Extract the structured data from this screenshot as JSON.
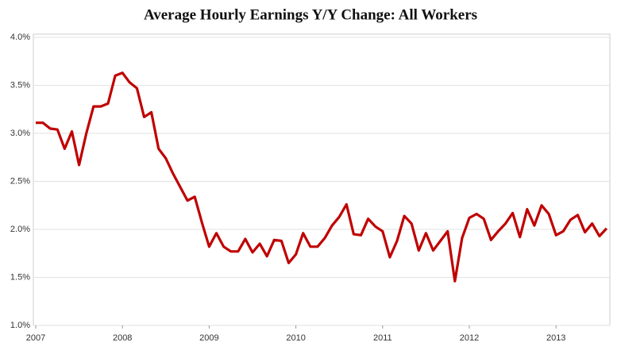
{
  "chart_data": {
    "type": "line",
    "title": "Average Hourly Earnings Y/Y Change: All Workers",
    "categories": [
      "2007",
      null,
      null,
      null,
      null,
      null,
      null,
      null,
      null,
      null,
      null,
      null,
      "2008",
      null,
      null,
      null,
      null,
      null,
      null,
      null,
      null,
      null,
      null,
      null,
      "2009",
      null,
      null,
      null,
      null,
      null,
      null,
      null,
      null,
      null,
      null,
      null,
      "2010",
      null,
      null,
      null,
      null,
      null,
      null,
      null,
      null,
      null,
      null,
      null,
      "2011",
      null,
      null,
      null,
      null,
      null,
      null,
      null,
      null,
      null,
      null,
      null,
      "2012",
      null,
      null,
      null,
      null,
      null,
      null,
      null,
      null,
      null,
      null,
      null,
      "2013",
      null,
      null,
      null,
      null,
      null,
      null,
      null
    ],
    "values": [
      3.11,
      3.11,
      3.05,
      3.04,
      2.84,
      3.02,
      2.67,
      3.0,
      3.28,
      3.28,
      3.31,
      3.6,
      3.63,
      3.53,
      3.47,
      3.17,
      3.22,
      2.84,
      2.74,
      2.58,
      2.44,
      2.3,
      2.34,
      2.07,
      1.82,
      1.96,
      1.82,
      1.77,
      1.77,
      1.9,
      1.76,
      1.85,
      1.72,
      1.89,
      1.88,
      1.65,
      1.74,
      1.96,
      1.82,
      1.82,
      1.91,
      2.04,
      2.13,
      2.26,
      1.95,
      1.94,
      2.11,
      2.03,
      1.98,
      1.71,
      1.88,
      2.14,
      2.06,
      1.78,
      1.96,
      1.78,
      1.88,
      1.98,
      1.46,
      1.91,
      2.12,
      2.16,
      2.11,
      1.89,
      1.98,
      2.06,
      2.17,
      1.92,
      2.21,
      2.04,
      2.25,
      2.16,
      1.94,
      1.98,
      2.1,
      2.15,
      1.97,
      2.06,
      1.93,
      2.01
    ],
    "color": "#c00000",
    "ylim": [
      1.0,
      4.0
    ],
    "yticks": [
      {
        "value": 1.0,
        "label": "1.0%"
      },
      {
        "value": 1.5,
        "label": "1.5%"
      },
      {
        "value": 2.0,
        "label": "2.0%"
      },
      {
        "value": 2.5,
        "label": "2.5%"
      },
      {
        "value": 3.0,
        "label": "3.0%"
      },
      {
        "value": 3.5,
        "label": "3.5%"
      },
      {
        "value": 4.0,
        "label": "4.0%"
      }
    ],
    "grid": true
  }
}
